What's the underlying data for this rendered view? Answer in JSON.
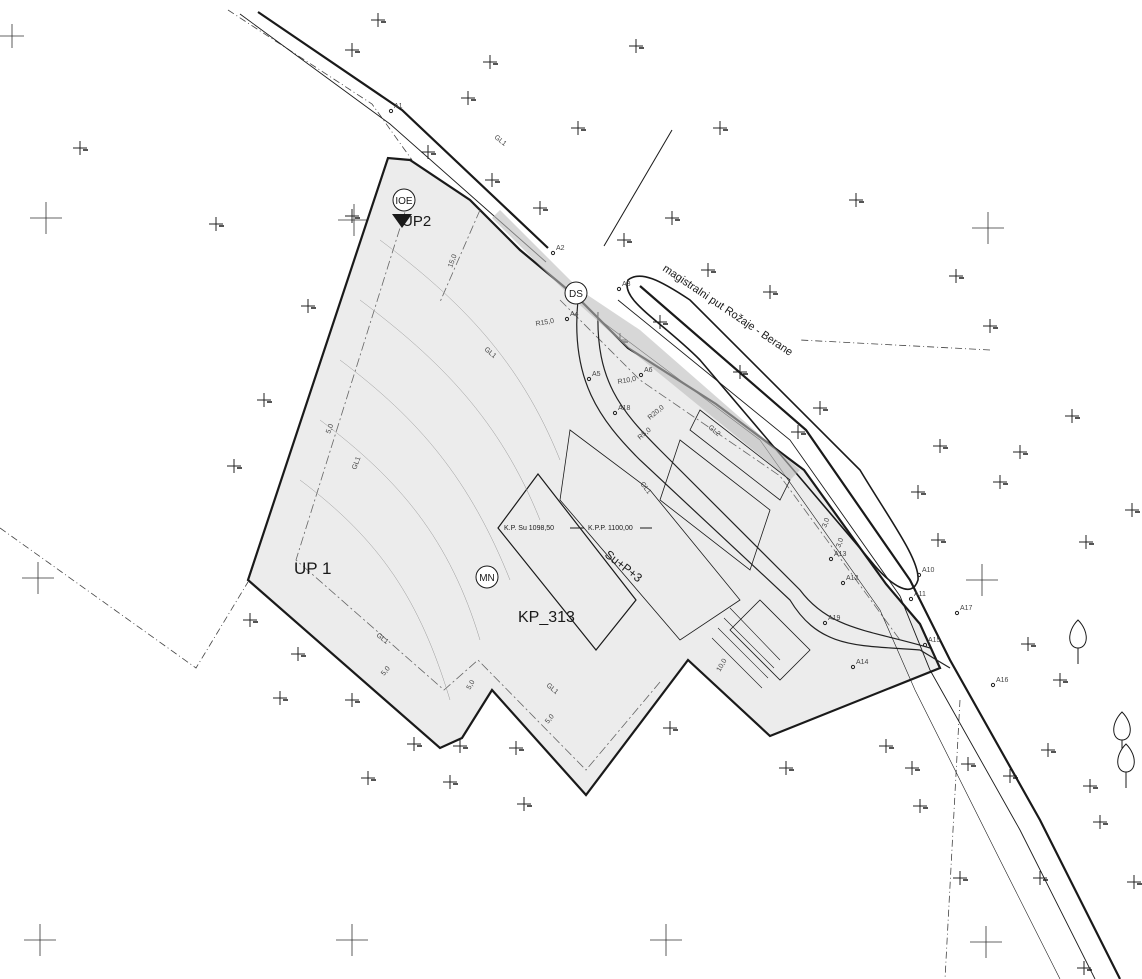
{
  "labels": {
    "plot_up1": "UP 1",
    "plot_up2": "UP2",
    "parcel": "KP_313",
    "zone_mn": "MN",
    "zone_ioe": "IOE",
    "zone_ds": "DS",
    "floors": "Su+P+3",
    "road": "magistralni put Rožaje - Berane",
    "elev_su": "K.P. Su 1098,50",
    "elev_p": "K.P.P. 1100,00"
  },
  "points": [
    "A1",
    "A2",
    "A3",
    "A4",
    "A5",
    "A6",
    "A10",
    "A11",
    "A12",
    "A13",
    "A14",
    "A15",
    "A16",
    "A17",
    "A18",
    "A19"
  ],
  "building_lines": [
    "GL1",
    "GL1",
    "GL1",
    "GL1",
    "GL1",
    "GL1",
    "GL2"
  ],
  "dimensions": [
    "15,0",
    "5,0",
    "5,0",
    "5,0",
    "5,0",
    "R15,0",
    "R10,0",
    "R20,0",
    "R5,0",
    "3,0",
    "3,0",
    "10,0"
  ],
  "colors": {
    "line": "#1a1a1a",
    "parcel_fill": "#ececec",
    "thin": "#555555"
  }
}
